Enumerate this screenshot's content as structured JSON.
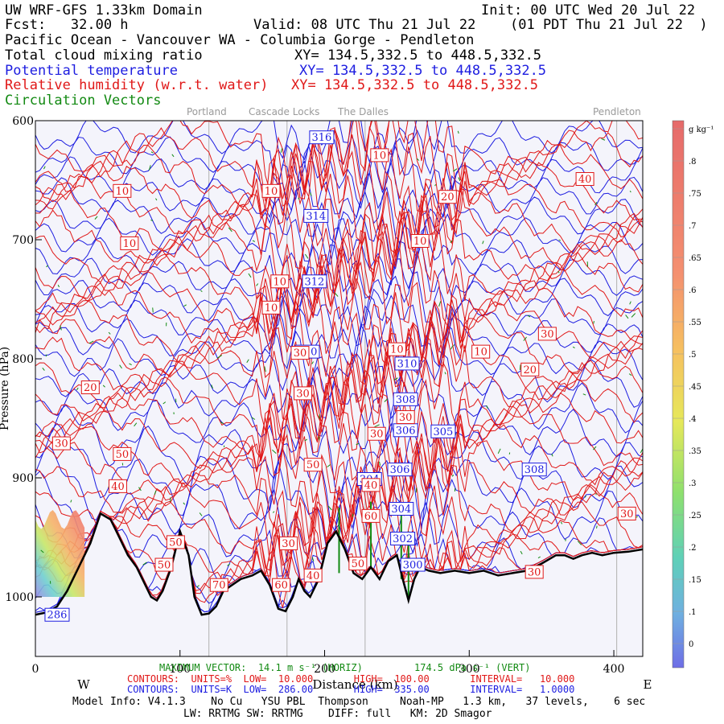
{
  "header": {
    "line1_left": "UW WRF-GFS 1.33km Domain",
    "line1_right": "Init: 00 UTC Wed 20 Jul 22",
    "line2_left": "Fcst:   32.00 h",
    "line2_mid": "Valid: 08 UTC Thu 21 Jul 22",
    "line2_right": "(01 PDT Thu 21 Jul 22  )",
    "line3": "Pacific Ocean - Vancouver WA - Columbia Gorge - Pendleton",
    "field1_name": "Total cloud mixing ratio",
    "field1_xy": "XY= 134.5,332.5 to 448.5,332.5",
    "field2_name": "Potential temperature",
    "field2_xy": "XY= 134.5,332.5 to 448.5,332.5",
    "field3_name": "Relative humidity (w.r.t. water)",
    "field3_xy": "XY= 134.5,332.5 to 448.5,332.5",
    "field4_name": "Circulation Vectors"
  },
  "towns": [
    "Portland",
    "Cascade Locks",
    "The Dalles",
    "Pendleton"
  ],
  "colors": {
    "rh": "#e01818",
    "theta": "#1d1de0",
    "vectors": "#138a13",
    "plot_bg": "#f4f4fb",
    "terrain": "#000000",
    "town_lines": "#b0b0b0"
  },
  "chart_data": {
    "type": "cross-section",
    "ylabel": "Pressure (hPa)",
    "xlabel": "Distance (km)",
    "x_range": [
      0,
      420
    ],
    "y_range": [
      1050,
      600
    ],
    "x_ticks": [
      0,
      100,
      200,
      300,
      400
    ],
    "y_ticks": [
      600,
      700,
      800,
      900,
      1000
    ],
    "x_tick_labels": [
      "0",
      "100",
      "200",
      "300",
      "400"
    ],
    "y_tick_labels": [
      "600",
      "700",
      "800",
      "900",
      "1000"
    ],
    "west_label": "W",
    "east_label": "E",
    "town_positions_km": [
      120,
      174,
      228,
      402
    ],
    "terrain": [
      [
        0,
        1015
      ],
      [
        8,
        1013
      ],
      [
        15,
        1008
      ],
      [
        22,
        995
      ],
      [
        30,
        975
      ],
      [
        38,
        955
      ],
      [
        45,
        930
      ],
      [
        52,
        935
      ],
      [
        58,
        950
      ],
      [
        64,
        965
      ],
      [
        70,
        975
      ],
      [
        76,
        990
      ],
      [
        80,
        1000
      ],
      [
        84,
        1003
      ],
      [
        88,
        995
      ],
      [
        94,
        975
      ],
      [
        100,
        945
      ],
      [
        106,
        965
      ],
      [
        110,
        1000
      ],
      [
        115,
        1015
      ],
      [
        120,
        1014
      ],
      [
        125,
        1008
      ],
      [
        130,
        995
      ],
      [
        136,
        990
      ],
      [
        142,
        985
      ],
      [
        150,
        982
      ],
      [
        156,
        978
      ],
      [
        162,
        990
      ],
      [
        168,
        1010
      ],
      [
        173,
        1012
      ],
      [
        178,
        1000
      ],
      [
        182,
        985
      ],
      [
        186,
        995
      ],
      [
        190,
        1000
      ],
      [
        196,
        985
      ],
      [
        202,
        955
      ],
      [
        208,
        945
      ],
      [
        214,
        960
      ],
      [
        220,
        980
      ],
      [
        226,
        985
      ],
      [
        232,
        975
      ],
      [
        238,
        985
      ],
      [
        244,
        970
      ],
      [
        250,
        965
      ],
      [
        254,
        985
      ],
      [
        258,
        1003
      ],
      [
        262,
        985
      ],
      [
        266,
        975
      ],
      [
        272,
        978
      ],
      [
        280,
        980
      ],
      [
        290,
        978
      ],
      [
        300,
        980
      ],
      [
        310,
        978
      ],
      [
        320,
        982
      ],
      [
        330,
        980
      ],
      [
        340,
        978
      ],
      [
        350,
        972
      ],
      [
        360,
        965
      ],
      [
        366,
        965
      ],
      [
        372,
        968
      ],
      [
        378,
        965
      ],
      [
        385,
        963
      ],
      [
        392,
        965
      ],
      [
        400,
        963
      ],
      [
        410,
        962
      ],
      [
        420,
        960
      ]
    ],
    "rh_contours": {
      "units": "%",
      "low": 10.0,
      "high": 100.0,
      "interval": 10.0,
      "labels": [
        {
          "x": 60,
          "p": 659,
          "v": "10"
        },
        {
          "x": 65,
          "p": 703,
          "v": "10"
        },
        {
          "x": 163,
          "p": 659,
          "v": "10"
        },
        {
          "x": 169,
          "p": 735,
          "v": "10"
        },
        {
          "x": 163,
          "p": 757,
          "v": "10"
        },
        {
          "x": 238,
          "p": 629,
          "v": "10"
        },
        {
          "x": 266,
          "p": 701,
          "v": "10"
        },
        {
          "x": 250,
          "p": 792,
          "v": "10"
        },
        {
          "x": 308,
          "p": 794,
          "v": "10"
        },
        {
          "x": 285,
          "p": 664,
          "v": "20"
        },
        {
          "x": 380,
          "p": 649,
          "v": "40"
        },
        {
          "x": 354,
          "p": 779,
          "v": "30"
        },
        {
          "x": 342,
          "p": 809,
          "v": "20"
        },
        {
          "x": 38,
          "p": 824,
          "v": "20"
        },
        {
          "x": 183,
          "p": 795,
          "v": "30"
        },
        {
          "x": 185,
          "p": 829,
          "v": "30"
        },
        {
          "x": 256,
          "p": 849,
          "v": "30"
        },
        {
          "x": 236,
          "p": 863,
          "v": "30"
        },
        {
          "x": 18,
          "p": 871,
          "v": "30"
        },
        {
          "x": 60,
          "p": 880,
          "v": "50"
        },
        {
          "x": 57,
          "p": 907,
          "v": "40"
        },
        {
          "x": 192,
          "p": 889,
          "v": "50"
        },
        {
          "x": 232,
          "p": 906,
          "v": "40"
        },
        {
          "x": 232,
          "p": 932,
          "v": "60"
        },
        {
          "x": 97,
          "p": 954,
          "v": "50"
        },
        {
          "x": 89,
          "p": 973,
          "v": "50"
        },
        {
          "x": 175,
          "p": 955,
          "v": "30"
        },
        {
          "x": 223,
          "p": 972,
          "v": "50"
        },
        {
          "x": 192,
          "p": 982,
          "v": "40"
        },
        {
          "x": 127,
          "p": 990,
          "v": "70"
        },
        {
          "x": 170,
          "p": 990,
          "v": "60"
        },
        {
          "x": 345,
          "p": 979,
          "v": "30"
        },
        {
          "x": 409,
          "p": 930,
          "v": "30"
        }
      ]
    },
    "theta_contours": {
      "units": "K",
      "low": 286.0,
      "high": 335.0,
      "interval": 1.0,
      "levels_shown": [
        300,
        302,
        304,
        306,
        308,
        310,
        312,
        314,
        316,
        286
      ],
      "labels": [
        {
          "x": 198,
          "p": 614,
          "v": "316"
        },
        {
          "x": 194,
          "p": 680,
          "v": "314"
        },
        {
          "x": 193,
          "p": 735,
          "v": "312"
        },
        {
          "x": 188,
          "p": 794,
          "v": "310"
        },
        {
          "x": 257,
          "p": 804,
          "v": "310"
        },
        {
          "x": 256,
          "p": 834,
          "v": "308"
        },
        {
          "x": 256,
          "p": 860,
          "v": "306"
        },
        {
          "x": 282,
          "p": 861,
          "v": "305"
        },
        {
          "x": 252,
          "p": 893,
          "v": "306"
        },
        {
          "x": 345,
          "p": 893,
          "v": "308"
        },
        {
          "x": 231,
          "p": 901,
          "v": "304"
        },
        {
          "x": 253,
          "p": 926,
          "v": "304"
        },
        {
          "x": 254,
          "p": 951,
          "v": "302"
        },
        {
          "x": 261,
          "p": 973,
          "v": "300"
        },
        {
          "x": 15,
          "p": 1015,
          "v": "286"
        }
      ]
    },
    "cloud": {
      "units": "g kg-1",
      "colorbar_ticks": [
        "g kg⁻¹",
        ".8",
        ".75",
        ".7",
        ".65",
        ".6",
        ".55",
        ".5",
        ".45",
        ".4",
        ".35",
        ".3",
        ".25",
        ".2",
        ".15",
        ".1",
        "0"
      ],
      "region": {
        "x_start": 0,
        "x_end": 34,
        "p_top": 935,
        "p_bottom": 1000
      }
    },
    "vectors": {
      "max_horiz_label": "MAXIMUM VECTOR:  14.1 m s⁻¹ (HORIZ)",
      "max_vert_label": "174.5 dPa s⁻¹ (VERT)"
    }
  },
  "footer": {
    "rh_contours": "CONTOURS:  UNITS=%  LOW=  10.000       HIGH=  100.00       INTERVAL=   10.000",
    "theta_contours": "CONTOURS:  UNITS=K  LOW=  286.00       HIGH=  335.00       INTERVAL=   1.0000",
    "model_info": "Model Info: V4.1.3    No Cu   YSU PBL  Thompson     Noah-MP   1.3 km,   37 levels,    6 sec",
    "physics": "LW: RRTMG SW: RRTMG    DIFF: full   KM: 2D Smagor"
  }
}
